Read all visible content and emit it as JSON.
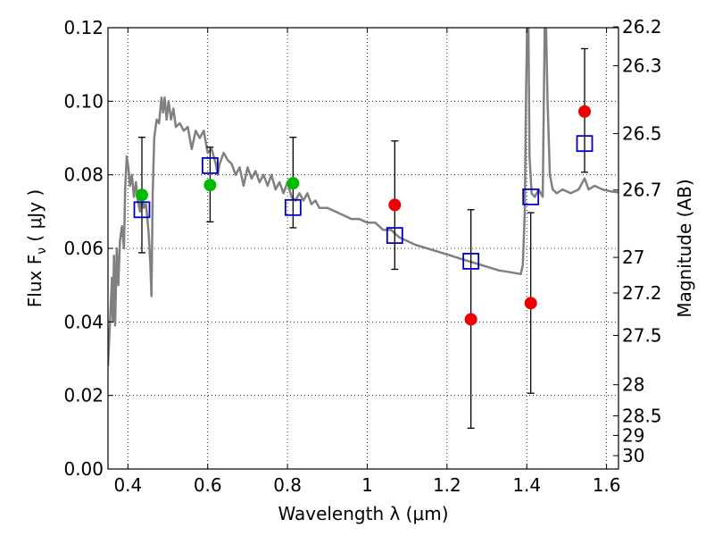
{
  "chart_data": {
    "type": "scatter",
    "xlabel": "Wavelength  λ (μm)",
    "ylabel": "Flux  F",
    "ylabel_sub": "ν",
    "ylabel_unit": "  ( μJy )",
    "y2label": "Magnitude (AB)",
    "xlim": [
      0.35,
      1.63
    ],
    "ylim": [
      0.0,
      0.12
    ],
    "grid": true,
    "x_ticks": [
      {
        "v": 0.4,
        "label": "0.4"
      },
      {
        "v": 0.6,
        "label": "0.6"
      },
      {
        "v": 0.8,
        "label": "0.8"
      },
      {
        "v": 1.0,
        "label": "1"
      },
      {
        "v": 1.2,
        "label": "1.2"
      },
      {
        "v": 1.4,
        "label": "1.4"
      },
      {
        "v": 1.6,
        "label": "1.6"
      }
    ],
    "y_ticks": [
      {
        "v": 0.0,
        "label": "0.00"
      },
      {
        "v": 0.02,
        "label": "0.02"
      },
      {
        "v": 0.04,
        "label": "0.04"
      },
      {
        "v": 0.06,
        "label": "0.06"
      },
      {
        "v": 0.08,
        "label": "0.08"
      },
      {
        "v": 0.1,
        "label": "0.10"
      },
      {
        "v": 0.12,
        "label": "0.12"
      }
    ],
    "y2_ticks": [
      {
        "mag": 26.2,
        "label": "26.2"
      },
      {
        "mag": 26.3,
        "label": "26.3"
      },
      {
        "mag": 26.5,
        "label": "26.5"
      },
      {
        "mag": 26.7,
        "label": "26.7"
      },
      {
        "mag": 27.0,
        "label": "27"
      },
      {
        "mag": 27.2,
        "label": "27.2"
      },
      {
        "mag": 27.5,
        "label": "27.5"
      },
      {
        "mag": 28.0,
        "label": "28"
      },
      {
        "mag": 28.5,
        "label": "28.5"
      },
      {
        "mag": 29.0,
        "label": "29"
      },
      {
        "mag": 30.0,
        "label": "30"
      }
    ],
    "series": [
      {
        "marker": "circle",
        "color": "#00bb00",
        "points": [
          {
            "x": 0.435,
            "y": 0.0745
          },
          {
            "x": 0.606,
            "y": 0.0772
          },
          {
            "x": 0.814,
            "y": 0.0777
          }
        ]
      },
      {
        "marker": "circle",
        "color": "#ee0000",
        "points": [
          {
            "x": 1.069,
            "y": 0.0718
          },
          {
            "x": 1.26,
            "y": 0.0407
          },
          {
            "x": 1.41,
            "y": 0.0451
          },
          {
            "x": 1.545,
            "y": 0.0972
          }
        ]
      },
      {
        "marker": "square",
        "color": "#0000cc",
        "points": [
          {
            "x": 0.435,
            "y": 0.0705
          },
          {
            "x": 0.606,
            "y": 0.0825
          },
          {
            "x": 0.814,
            "y": 0.0711
          },
          {
            "x": 1.069,
            "y": 0.0635
          },
          {
            "x": 1.26,
            "y": 0.0565
          },
          {
            "x": 1.41,
            "y": 0.074
          },
          {
            "x": 1.545,
            "y": 0.0885
          }
        ]
      }
    ],
    "errorbars": [
      {
        "x": 0.435,
        "ylo": 0.0588,
        "yhi": 0.0902
      },
      {
        "x": 0.606,
        "ylo": 0.0672,
        "yhi": 0.0875
      },
      {
        "x": 0.814,
        "ylo": 0.0656,
        "yhi": 0.0902
      },
      {
        "x": 1.069,
        "ylo": 0.0543,
        "yhi": 0.0892
      },
      {
        "x": 1.26,
        "ylo": 0.0111,
        "yhi": 0.0705
      },
      {
        "x": 1.41,
        "ylo": 0.0206,
        "yhi": 0.0697
      },
      {
        "x": 1.545,
        "ylo": 0.0807,
        "yhi": 0.1143
      }
    ],
    "model_spectrum": {
      "color": "#808080",
      "points": [
        [
          0.35,
          0.028
        ],
        [
          0.36,
          0.052
        ],
        [
          0.362,
          0.04
        ],
        [
          0.365,
          0.058
        ],
        [
          0.368,
          0.039
        ],
        [
          0.372,
          0.06
        ],
        [
          0.376,
          0.05
        ],
        [
          0.38,
          0.062
        ],
        [
          0.385,
          0.066
        ],
        [
          0.39,
          0.06
        ],
        [
          0.393,
          0.076
        ],
        [
          0.397,
          0.085
        ],
        [
          0.401,
          0.082
        ],
        [
          0.405,
          0.077
        ],
        [
          0.41,
          0.08
        ],
        [
          0.415,
          0.074
        ],
        [
          0.42,
          0.078
        ],
        [
          0.425,
          0.073
        ],
        [
          0.43,
          0.07
        ],
        [
          0.435,
          0.075
        ],
        [
          0.44,
          0.071
        ],
        [
          0.445,
          0.072
        ],
        [
          0.448,
          0.069
        ],
        [
          0.452,
          0.064
        ],
        [
          0.456,
          0.056
        ],
        [
          0.459,
          0.047
        ],
        [
          0.462,
          0.075
        ],
        [
          0.466,
          0.09
        ],
        [
          0.472,
          0.095
        ],
        [
          0.478,
          0.094
        ],
        [
          0.484,
          0.101
        ],
        [
          0.488,
          0.097
        ],
        [
          0.492,
          0.101
        ],
        [
          0.497,
          0.095
        ],
        [
          0.502,
          0.1
        ],
        [
          0.508,
          0.095
        ],
        [
          0.514,
          0.098
        ],
        [
          0.52,
          0.093
        ],
        [
          0.53,
          0.094
        ],
        [
          0.54,
          0.092
        ],
        [
          0.55,
          0.093
        ],
        [
          0.56,
          0.087
        ],
        [
          0.57,
          0.092
        ],
        [
          0.58,
          0.09
        ],
        [
          0.59,
          0.092
        ],
        [
          0.6,
          0.086
        ],
        [
          0.61,
          0.087
        ],
        [
          0.62,
          0.083
        ],
        [
          0.625,
          0.08
        ],
        [
          0.63,
          0.083
        ],
        [
          0.64,
          0.086
        ],
        [
          0.65,
          0.084
        ],
        [
          0.66,
          0.083
        ],
        [
          0.67,
          0.08
        ],
        [
          0.68,
          0.082
        ],
        [
          0.69,
          0.077
        ],
        [
          0.7,
          0.082
        ],
        [
          0.71,
          0.079
        ],
        [
          0.72,
          0.081
        ],
        [
          0.73,
          0.078
        ],
        [
          0.74,
          0.08
        ],
        [
          0.75,
          0.077
        ],
        [
          0.76,
          0.08
        ],
        [
          0.77,
          0.076
        ],
        [
          0.78,
          0.078
        ],
        [
          0.79,
          0.075
        ],
        [
          0.8,
          0.078
        ],
        [
          0.81,
          0.074
        ],
        [
          0.82,
          0.073
        ],
        [
          0.83,
          0.075
        ],
        [
          0.84,
          0.073
        ],
        [
          0.85,
          0.075
        ],
        [
          0.86,
          0.072
        ],
        [
          0.87,
          0.073
        ],
        [
          0.88,
          0.071
        ],
        [
          0.9,
          0.071
        ],
        [
          0.92,
          0.07
        ],
        [
          0.94,
          0.069
        ],
        [
          0.96,
          0.068
        ],
        [
          0.98,
          0.068
        ],
        [
          1.0,
          0.067
        ],
        [
          1.02,
          0.067
        ],
        [
          1.04,
          0.065
        ],
        [
          1.06,
          0.065
        ],
        [
          1.08,
          0.063
        ],
        [
          1.1,
          0.062
        ],
        [
          1.12,
          0.061
        ],
        [
          1.15,
          0.06
        ],
        [
          1.18,
          0.059
        ],
        [
          1.21,
          0.058
        ],
        [
          1.24,
          0.057
        ],
        [
          1.27,
          0.056
        ],
        [
          1.3,
          0.055
        ],
        [
          1.33,
          0.054
        ],
        [
          1.36,
          0.0535
        ],
        [
          1.385,
          0.053
        ],
        [
          1.39,
          0.0555
        ],
        [
          1.395,
          0.07
        ],
        [
          1.398,
          0.1
        ],
        [
          1.401,
          0.122
        ],
        [
          1.404,
          0.122
        ],
        [
          1.407,
          0.085
        ],
        [
          1.412,
          0.075
        ],
        [
          1.42,
          0.074
        ],
        [
          1.43,
          0.076
        ],
        [
          1.44,
          0.074
        ],
        [
          1.445,
          0.12
        ],
        [
          1.448,
          0.122
        ],
        [
          1.452,
          0.1
        ],
        [
          1.458,
          0.08
        ],
        [
          1.465,
          0.076
        ],
        [
          1.475,
          0.075
        ],
        [
          1.49,
          0.076
        ],
        [
          1.51,
          0.075
        ],
        [
          1.53,
          0.076
        ],
        [
          1.545,
          0.079
        ],
        [
          1.555,
          0.076
        ],
        [
          1.57,
          0.077
        ],
        [
          1.59,
          0.076
        ],
        [
          1.61,
          0.0755
        ],
        [
          1.63,
          0.0752
        ]
      ]
    }
  }
}
